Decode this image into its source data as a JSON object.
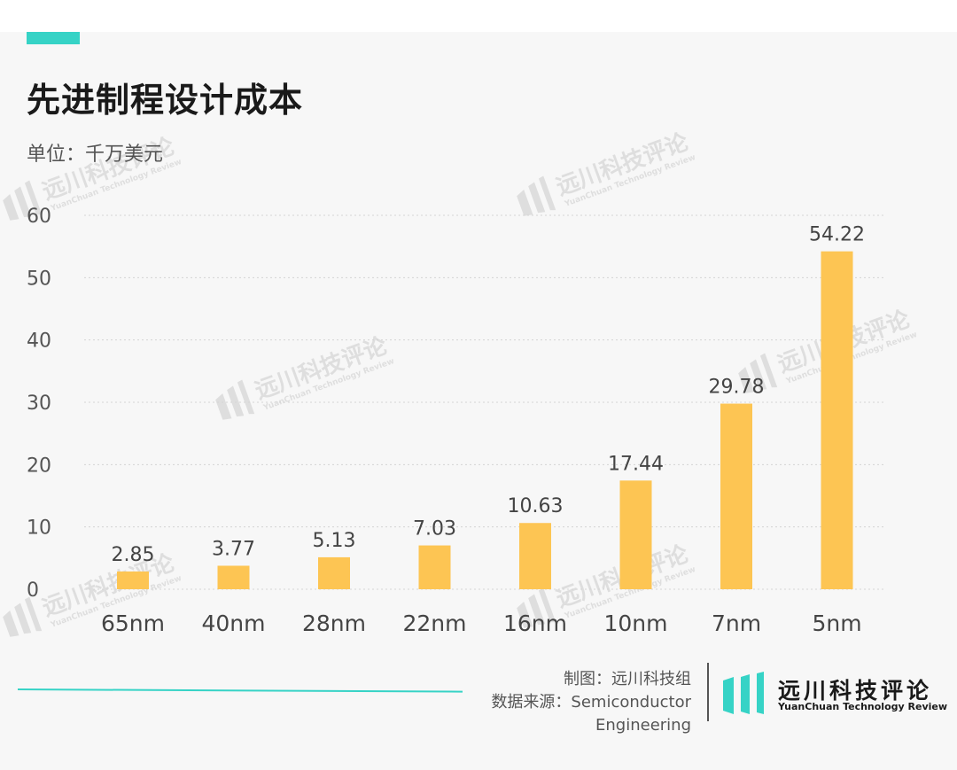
{
  "title": "先进制程设计成本",
  "subtitle": "单位：千万美元",
  "watermark": {
    "cn": "远川科技评论",
    "en": "YuanChuan Technology Review"
  },
  "footer": {
    "maker": "制图：远川科技组",
    "source_line1": "数据来源：Semiconductor",
    "source_line2": "Engineering",
    "logo_cn": "远川科技评论",
    "logo_en": "YuanChuan Technology Review"
  },
  "colors": {
    "bar": "#fdc553",
    "accent": "#36d3c6",
    "background": "#f7f7f7"
  },
  "chart_data": {
    "type": "bar",
    "title": "先进制程设计成本",
    "subtitle": "单位：千万美元",
    "categories": [
      "65nm",
      "40nm",
      "28nm",
      "22nm",
      "16nm",
      "10nm",
      "7nm",
      "5nm"
    ],
    "values": [
      2.85,
      3.77,
      5.13,
      7.03,
      10.63,
      17.44,
      29.78,
      54.22
    ],
    "value_labels": [
      "2.85",
      "3.77",
      "5.13",
      "7.03",
      "10.63",
      "17.44",
      "29.78",
      "54.22"
    ],
    "yticks": [
      "0",
      "10",
      "20",
      "30",
      "40",
      "50",
      "60"
    ],
    "ylim": [
      0,
      60
    ],
    "grid": true,
    "legend": "none"
  }
}
